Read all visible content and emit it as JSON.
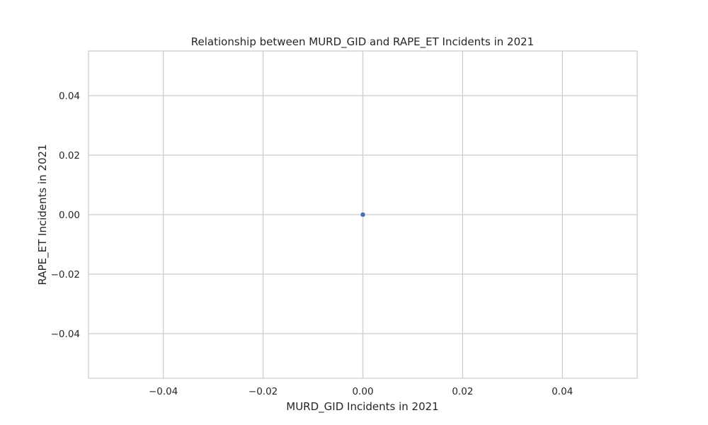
{
  "chart_data": {
    "type": "scatter",
    "title": "Relationship between MURD_GID and RAPE_ET Incidents in 2021",
    "xlabel": "MURD_GID Incidents in 2021",
    "ylabel": "RAPE_ET Incidents in 2021",
    "xlim": [
      -0.055,
      0.055
    ],
    "ylim": [
      -0.055,
      0.055
    ],
    "xticks": [
      -0.04,
      -0.02,
      0.0,
      0.02,
      0.04
    ],
    "yticks": [
      -0.04,
      -0.02,
      0.0,
      0.02,
      0.04
    ],
    "xtick_labels": [
      "−0.04",
      "−0.02",
      "0.00",
      "0.02",
      "0.04"
    ],
    "ytick_labels": [
      "−0.04",
      "−0.02",
      "0.00",
      "0.02",
      "0.04"
    ],
    "grid": true,
    "legend": "none",
    "points": [
      {
        "x": 0,
        "y": 0
      }
    ],
    "colors": {
      "point": "#4c72b0",
      "grid": "#cccccc",
      "frame": "#cccccc"
    }
  }
}
